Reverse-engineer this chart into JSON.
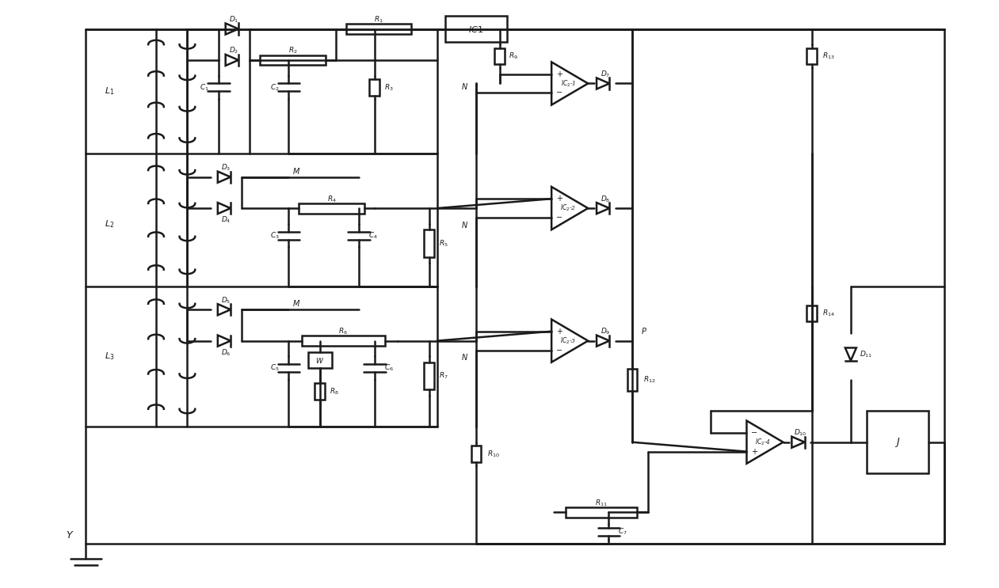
{
  "bg": "#ffffff",
  "lc": "#1a1a1a",
  "lw": 1.8
}
